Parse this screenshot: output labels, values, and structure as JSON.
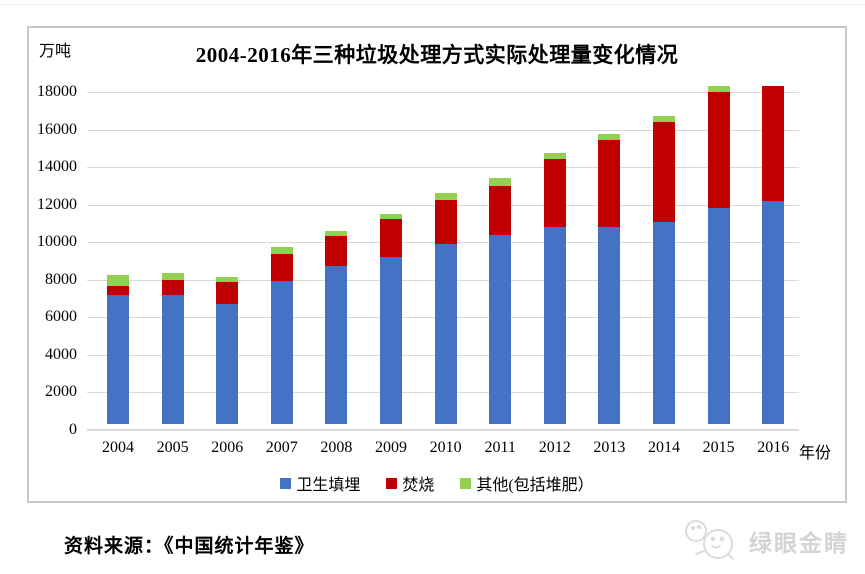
{
  "page": {
    "source_note": "资料来源：《中国统计年鉴》",
    "watermark_text": "绿眼金睛"
  },
  "chart_data": {
    "type": "bar",
    "stacked": true,
    "title": "2004-2016年三种垃圾处理方式实际处理量变化情况",
    "unit_label": "万吨",
    "xlabel": "年份",
    "ylabel": "万吨",
    "categories": [
      "2004",
      "2005",
      "2006",
      "2007",
      "2008",
      "2009",
      "2010",
      "2011",
      "2012",
      "2013",
      "2014",
      "2015",
      "2016"
    ],
    "series": [
      {
        "name": "卫生填埋",
        "color": "#4472C4",
        "values": [
          6889,
          6858,
          6408,
          7633,
          8424,
          8899,
          9598,
          10064,
          10513,
          10493,
          10744,
          11483,
          11866
        ]
      },
      {
        "name": "焚烧",
        "color": "#C00000",
        "values": [
          450,
          790,
          1138,
          1435,
          1570,
          2022,
          2317,
          2599,
          3584,
          4634,
          5330,
          6176,
          6134
        ]
      },
      {
        "name": "其他(包括堆肥）",
        "color": "#92D050",
        "values": [
          615,
          403,
          288,
          380,
          300,
          281,
          370,
          428,
          354,
          338,
          330,
          353,
          0
        ]
      }
    ],
    "ylim": [
      0,
      18000
    ],
    "ytick_step": 2000,
    "yticks": [
      0,
      2000,
      4000,
      6000,
      8000,
      10000,
      12000,
      14000,
      16000,
      18000
    ],
    "grid": true,
    "legend_position": "bottom",
    "style": {
      "grid_color": "#D9D9D9",
      "frame_color": "#C9C9C9",
      "text_color": "#000000",
      "watermark_color": "#D4D4D4"
    }
  }
}
